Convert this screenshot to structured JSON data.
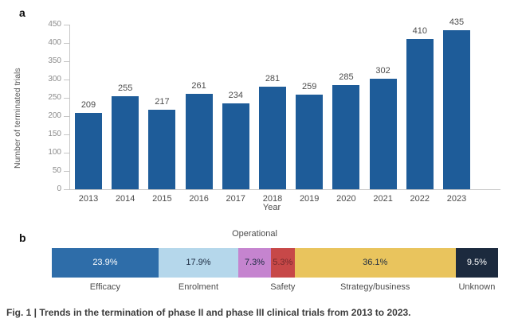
{
  "figure": {
    "panel_a_label": "a",
    "panel_b_label": "b",
    "caption": "Fig. 1 | Trends in the termination of phase II and phase III clinical trials from 2013 to 2023."
  },
  "chart_data": [
    {
      "type": "bar",
      "panel": "a",
      "title": "",
      "xlabel": "Year",
      "ylabel": "Number of terminated trials",
      "categories": [
        "2013",
        "2014",
        "2015",
        "2016",
        "2017",
        "2018",
        "2019",
        "2020",
        "2021",
        "2022",
        "2023"
      ],
      "values": [
        209,
        255,
        217,
        261,
        234,
        281,
        259,
        285,
        302,
        410,
        435
      ],
      "ylim": [
        0,
        450
      ],
      "ytick_step": 50,
      "grid": false,
      "legend": "none",
      "bar_color": "#1e5c99",
      "data_labels_shown": true
    },
    {
      "type": "bar",
      "panel": "b",
      "orientation": "horizontal-stacked",
      "unit": "%",
      "segments": [
        {
          "label": "Efficacy",
          "value": 23.9,
          "color": "#2e6da9",
          "text_color": "#ffffff",
          "label_position": "below"
        },
        {
          "label": "Enrolment",
          "value": 17.9,
          "color": "#b5d7eb",
          "text_color": "#1b2a40",
          "label_position": "below"
        },
        {
          "label": "Operational",
          "value": 7.3,
          "color": "#c584cf",
          "text_color": "#1b2a40",
          "label_position": "above"
        },
        {
          "label": "Safety",
          "value": 5.3,
          "color": "#c74848",
          "text_color": "#752a2d",
          "label_position": "below"
        },
        {
          "label": "Strategy/business",
          "value": 36.1,
          "color": "#e9c45d",
          "text_color": "#1b2a40",
          "label_position": "below"
        },
        {
          "label": "Unknown",
          "value": 9.5,
          "color": "#1c2a3e",
          "text_color": "#ffffff",
          "label_position": "below"
        }
      ]
    }
  ]
}
